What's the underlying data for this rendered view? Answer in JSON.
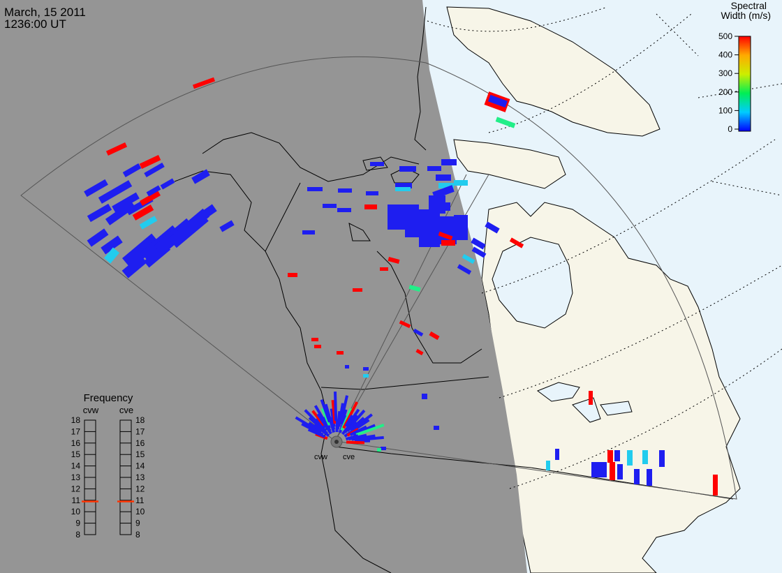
{
  "header": {
    "date": "March, 15 2011",
    "time": "1236:00 UT"
  },
  "colorbar": {
    "title_line1": "Spectral",
    "title_line2": "Width (m/s)",
    "ticks": [
      "500",
      "400",
      "300",
      "200",
      "100",
      "0"
    ]
  },
  "frequency": {
    "title": "Frequency",
    "radars": [
      "cvw",
      "cve"
    ],
    "ticks": [
      "18",
      "17",
      "16",
      "15",
      "14",
      "13",
      "12",
      "11",
      "10",
      "9",
      "8"
    ],
    "selected_mhz": [
      10.9,
      10.9
    ],
    "marker_color": "#ff3300"
  },
  "radar_labels": [
    "cvw",
    "cve"
  ],
  "colors": {
    "night": "#959595",
    "ocean_day": "#e8f4fb",
    "land_day": "#f7f5e8",
    "low": "#1e1ef0",
    "high": "#ff0000",
    "cyan": "#22ccee",
    "green": "#22ee88"
  }
}
